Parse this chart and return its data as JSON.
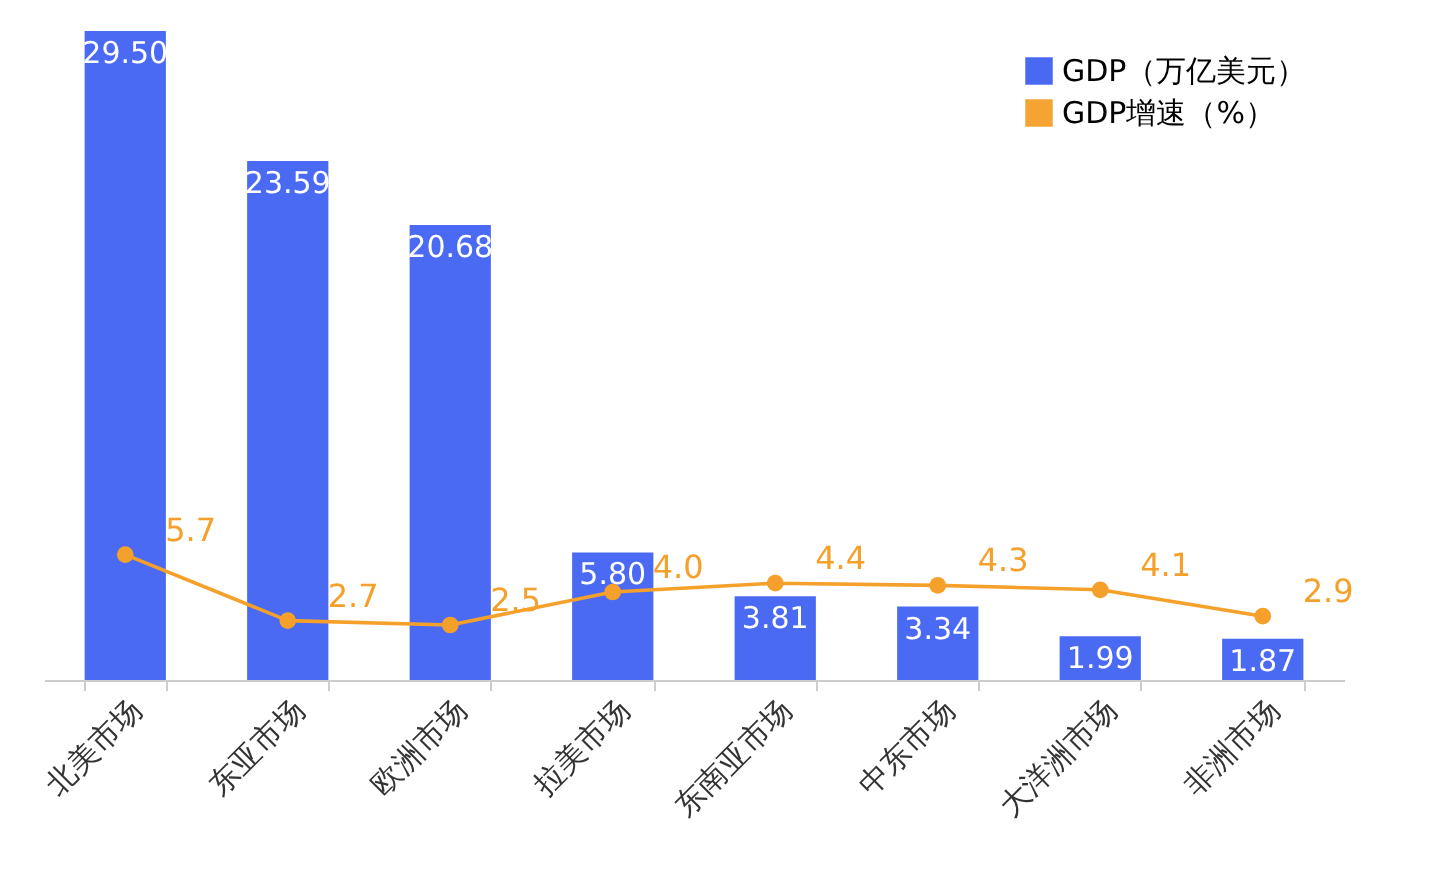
{
  "chart_data": {
    "type": "bar",
    "categories": [
      "北美市场",
      "东亚市场",
      "欧洲市场",
      "拉美市场",
      "东南亚市场",
      "中东市场",
      "大洋洲市场",
      "非洲市场"
    ],
    "series": [
      {
        "name": "GDP（万亿美元）",
        "color": "#4062f2",
        "values": [
          29.5,
          23.59,
          20.68,
          5.8,
          3.81,
          3.34,
          1.99,
          1.87
        ],
        "value_labels": [
          "29.50",
          "23.59",
          "20.68",
          "5.80",
          "3.81",
          "3.34",
          "1.99",
          "1.87"
        ]
      },
      {
        "name": "GDP增速（%）",
        "type": "line",
        "color": "#f5a02a",
        "values": [
          5.7,
          2.7,
          2.5,
          4.0,
          4.4,
          4.3,
          4.1,
          2.9
        ],
        "value_labels": [
          "5.7",
          "2.7",
          "2.5",
          "4.0",
          "4.4",
          "4.3",
          "4.1",
          "2.9"
        ]
      }
    ],
    "tick_labels": "x",
    "legend": "top right",
    "marker": "circle",
    "line_style": "solid"
  }
}
